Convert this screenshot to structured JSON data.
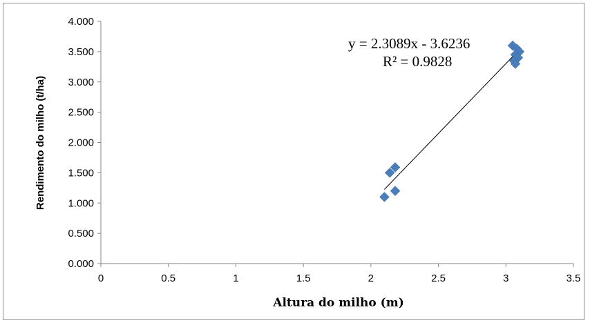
{
  "chart_data": {
    "type": "scatter",
    "xlabel": "Altura do milho (m)",
    "ylabel": "Rendimento do milho (t/ha)",
    "xlim": [
      0,
      3.5
    ],
    "ylim": [
      0,
      4
    ],
    "x_ticks": [
      0,
      0.5,
      1,
      1.5,
      2,
      2.5,
      3,
      3.5
    ],
    "x_tick_labels": [
      "0",
      "0.5",
      "1",
      "1.5",
      "2",
      "2.5",
      "3",
      "3.5"
    ],
    "y_ticks": [
      0,
      0.5,
      1,
      1.5,
      2,
      2.5,
      3,
      3.5,
      4
    ],
    "y_tick_labels": [
      "0.000",
      "0.500",
      "1.000",
      "1.500",
      "2.000",
      "2.500",
      "3.000",
      "3.500",
      "4.000"
    ],
    "grid": false,
    "marker_color": "#4a7ebb",
    "points": [
      {
        "x": 2.1,
        "y": 1.1
      },
      {
        "x": 2.18,
        "y": 1.2
      },
      {
        "x": 2.14,
        "y": 1.5
      },
      {
        "x": 2.18,
        "y": 1.59
      },
      {
        "x": 3.05,
        "y": 3.6
      },
      {
        "x": 3.08,
        "y": 3.55
      },
      {
        "x": 3.1,
        "y": 3.5
      },
      {
        "x": 3.07,
        "y": 3.45
      },
      {
        "x": 3.09,
        "y": 3.4
      },
      {
        "x": 3.06,
        "y": 3.35
      },
      {
        "x": 3.07,
        "y": 3.3
      }
    ],
    "trendline": {
      "slope": 2.3089,
      "intercept": -3.6236,
      "x_range": [
        2.1,
        3.1
      ],
      "color": "#000000"
    },
    "equation_text": "y = 2.3089x - 3.6236",
    "r2_text": "R² = 0.9828"
  }
}
